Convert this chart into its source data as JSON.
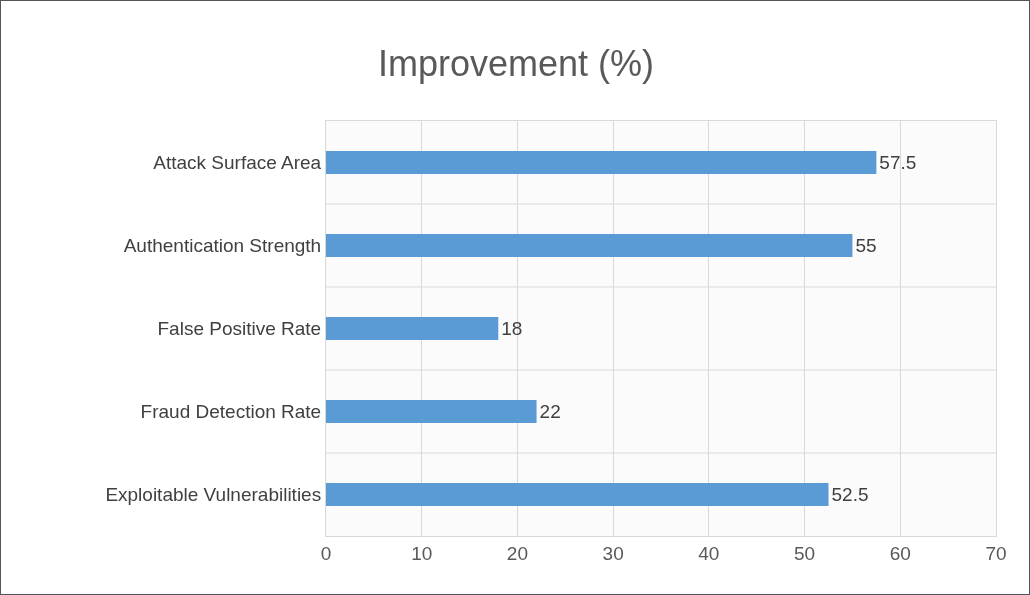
{
  "chart_data": {
    "type": "bar",
    "orientation": "horizontal",
    "title": "Improvement (%)",
    "categories": [
      "Attack Surface Area",
      "Authentication Strength",
      "False Positive Rate",
      "Fraud Detection Rate",
      "Exploitable Vulnerabilities"
    ],
    "values": [
      57.5,
      55,
      18,
      22,
      52.5
    ],
    "color": "#5b9bd5",
    "xlim": [
      0,
      70
    ],
    "xticks": [
      0,
      10,
      20,
      30,
      40,
      50,
      60,
      70
    ],
    "grid": true,
    "data_labels": true
  }
}
